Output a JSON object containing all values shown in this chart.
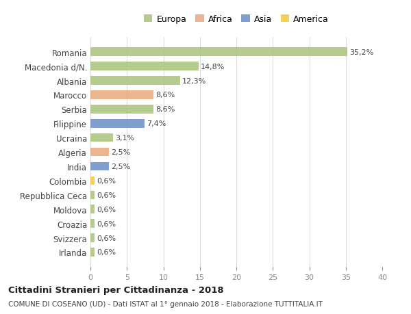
{
  "countries": [
    "Romania",
    "Macedonia d/N.",
    "Albania",
    "Marocco",
    "Serbia",
    "Filippine",
    "Ucraina",
    "Algeria",
    "India",
    "Colombia",
    "Repubblica Ceca",
    "Moldova",
    "Croazia",
    "Svizzera",
    "Irlanda"
  ],
  "values": [
    35.2,
    14.8,
    12.3,
    8.6,
    8.6,
    7.4,
    3.1,
    2.5,
    2.5,
    0.6,
    0.6,
    0.6,
    0.6,
    0.6,
    0.6
  ],
  "labels": [
    "35,2%",
    "14,8%",
    "12,3%",
    "8,6%",
    "8,6%",
    "7,4%",
    "3,1%",
    "2,5%",
    "2,5%",
    "0,6%",
    "0,6%",
    "0,6%",
    "0,6%",
    "0,6%",
    "0,6%"
  ],
  "continents": [
    "Europa",
    "Europa",
    "Europa",
    "Africa",
    "Europa",
    "Asia",
    "Europa",
    "Africa",
    "Asia",
    "America",
    "Europa",
    "Europa",
    "Europa",
    "Europa",
    "Europa"
  ],
  "continent_colors": {
    "Europa": "#a8c47a",
    "Africa": "#e8a87c",
    "Asia": "#6b8dc4",
    "America": "#f0c93a"
  },
  "legend_order": [
    "Europa",
    "Africa",
    "Asia",
    "America"
  ],
  "title": "Cittadini Stranieri per Cittadinanza - 2018",
  "subtitle": "COMUNE DI COSEANO (UD) - Dati ISTAT al 1° gennaio 2018 - Elaborazione TUTTITALIA.IT",
  "xlim": [
    0,
    40
  ],
  "xticks": [
    0,
    5,
    10,
    15,
    20,
    25,
    30,
    35,
    40
  ],
  "background_color": "#ffffff",
  "grid_color": "#dddddd"
}
